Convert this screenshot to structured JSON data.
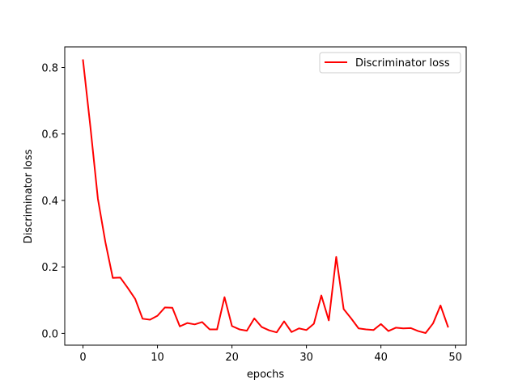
{
  "chart_data": {
    "type": "line",
    "xlabel": "epochs",
    "ylabel": "Discriminator loss",
    "xlim": [
      -2.45,
      51.45
    ],
    "ylim": [
      -0.0355,
      0.8621
    ],
    "xticks": [
      0,
      10,
      20,
      30,
      40,
      50
    ],
    "yticks": [
      0.0,
      0.2,
      0.4,
      0.6,
      0.8
    ],
    "grid": false,
    "legend_position": "top-right",
    "series": [
      {
        "name": "Discriminator loss",
        "color": "#ff0000",
        "x": [
          0,
          1,
          2,
          3,
          4,
          5,
          6,
          7,
          8,
          9,
          10,
          11,
          12,
          13,
          14,
          15,
          16,
          17,
          18,
          19,
          20,
          21,
          22,
          23,
          24,
          25,
          26,
          27,
          28,
          29,
          30,
          31,
          32,
          33,
          34,
          35,
          36,
          37,
          38,
          39,
          40,
          41,
          42,
          43,
          44,
          45,
          46,
          47,
          48,
          49
        ],
        "values": [
          0.822,
          0.62,
          0.405,
          0.275,
          0.167,
          0.168,
          0.137,
          0.104,
          0.044,
          0.041,
          0.053,
          0.078,
          0.077,
          0.021,
          0.031,
          0.027,
          0.034,
          0.012,
          0.012,
          0.109,
          0.022,
          0.012,
          0.008,
          0.045,
          0.019,
          0.009,
          0.003,
          0.036,
          0.004,
          0.015,
          0.01,
          0.029,
          0.114,
          0.039,
          0.23,
          0.073,
          0.045,
          0.015,
          0.012,
          0.01,
          0.028,
          0.007,
          0.017,
          0.015,
          0.016,
          0.007,
          0.001,
          0.03,
          0.084,
          0.02
        ]
      }
    ]
  }
}
